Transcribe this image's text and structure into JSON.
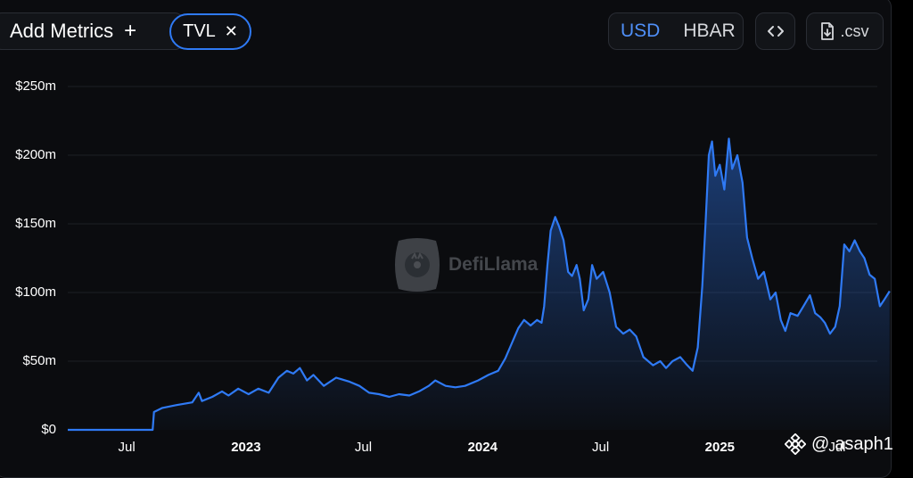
{
  "toolbar": {
    "add_metrics_label": "Add Metrics",
    "add_icon": "plus-icon",
    "metric_chip_label": "TVL",
    "chip_close_icon": "close-icon",
    "currency_options": [
      "USD",
      "HBAR"
    ],
    "currency_selected": "USD",
    "embed_icon": "code-icon",
    "csv_label": ".csv",
    "csv_icon": "file-download-icon"
  },
  "watermark": {
    "text": "DefiLlama",
    "icon": "llama-logo-icon"
  },
  "credit": {
    "at": "@",
    "handle": "asaph1",
    "icon": "binance-square-icon"
  },
  "colors": {
    "line": "#2f7af5",
    "accent": "#4f8ff7",
    "background": "#0b0c0f"
  },
  "chart_data": {
    "type": "area",
    "title": "",
    "xlabel": "",
    "ylabel": "",
    "ylim": [
      0,
      250
    ],
    "grid": true,
    "y_tick_labels": [
      "$0",
      "$50m",
      "$100m",
      "$150m",
      "$200m",
      "$250m"
    ],
    "y_tick_values": [
      0,
      50,
      100,
      150,
      200,
      250
    ],
    "x_tick_labels": [
      "Jul",
      "2023",
      "Jul",
      "2024",
      "Jul",
      "2025",
      "Jul"
    ],
    "x_tick_bold": [
      false,
      true,
      false,
      true,
      false,
      true,
      false
    ],
    "x_tick_dates": [
      "2022-07-01",
      "2023-01-01",
      "2023-07-01",
      "2024-01-01",
      "2024-07-01",
      "2025-01-01",
      "2025-07-01"
    ],
    "x_range": [
      "2022-04-01",
      "2025-09-01"
    ],
    "series": [
      {
        "name": "",
        "unit": "USD millions",
        "points": [
          [
            "2022-04-01",
            0
          ],
          [
            "2022-08-10",
            0
          ],
          [
            "2022-08-12",
            13
          ],
          [
            "2022-08-25",
            16
          ],
          [
            "2022-09-15",
            18
          ],
          [
            "2022-10-10",
            20
          ],
          [
            "2022-10-20",
            27
          ],
          [
            "2022-10-25",
            21
          ],
          [
            "2022-11-10",
            24
          ],
          [
            "2022-11-25",
            28
          ],
          [
            "2022-12-05",
            25
          ],
          [
            "2022-12-20",
            30
          ],
          [
            "2023-01-05",
            26
          ],
          [
            "2023-01-20",
            30
          ],
          [
            "2023-02-05",
            27
          ],
          [
            "2023-02-20",
            38
          ],
          [
            "2023-03-05",
            43
          ],
          [
            "2023-03-15",
            41
          ],
          [
            "2023-03-25",
            45
          ],
          [
            "2023-04-05",
            36
          ],
          [
            "2023-04-15",
            40
          ],
          [
            "2023-05-01",
            32
          ],
          [
            "2023-05-20",
            38
          ],
          [
            "2023-06-10",
            35
          ],
          [
            "2023-06-25",
            32
          ],
          [
            "2023-07-10",
            27
          ],
          [
            "2023-07-25",
            26
          ],
          [
            "2023-08-10",
            24
          ],
          [
            "2023-08-25",
            26
          ],
          [
            "2023-09-10",
            25
          ],
          [
            "2023-09-25",
            28
          ],
          [
            "2023-10-10",
            32
          ],
          [
            "2023-10-20",
            36
          ],
          [
            "2023-11-05",
            32
          ],
          [
            "2023-11-20",
            31
          ],
          [
            "2023-12-05",
            32
          ],
          [
            "2023-12-25",
            36
          ],
          [
            "2024-01-10",
            40
          ],
          [
            "2024-01-25",
            43
          ],
          [
            "2024-02-05",
            52
          ],
          [
            "2024-02-15",
            63
          ],
          [
            "2024-02-25",
            74
          ],
          [
            "2024-03-05",
            80
          ],
          [
            "2024-03-15",
            76
          ],
          [
            "2024-03-25",
            80
          ],
          [
            "2024-04-01",
            78
          ],
          [
            "2024-04-05",
            90
          ],
          [
            "2024-04-10",
            120
          ],
          [
            "2024-04-15",
            145
          ],
          [
            "2024-04-22",
            155
          ],
          [
            "2024-04-28",
            148
          ],
          [
            "2024-05-05",
            138
          ],
          [
            "2024-05-12",
            115
          ],
          [
            "2024-05-18",
            112
          ],
          [
            "2024-05-25",
            120
          ],
          [
            "2024-05-30",
            110
          ],
          [
            "2024-06-05",
            87
          ],
          [
            "2024-06-12",
            95
          ],
          [
            "2024-06-18",
            120
          ],
          [
            "2024-06-25",
            110
          ],
          [
            "2024-07-05",
            115
          ],
          [
            "2024-07-15",
            100
          ],
          [
            "2024-07-25",
            75
          ],
          [
            "2024-08-05",
            70
          ],
          [
            "2024-08-15",
            73
          ],
          [
            "2024-08-25",
            68
          ],
          [
            "2024-09-05",
            53
          ],
          [
            "2024-09-20",
            47
          ],
          [
            "2024-10-01",
            50
          ],
          [
            "2024-10-10",
            45
          ],
          [
            "2024-10-20",
            50
          ],
          [
            "2024-11-01",
            53
          ],
          [
            "2024-11-10",
            48
          ],
          [
            "2024-11-20",
            43
          ],
          [
            "2024-11-28",
            60
          ],
          [
            "2024-12-05",
            105
          ],
          [
            "2024-12-10",
            150
          ],
          [
            "2024-12-15",
            200
          ],
          [
            "2024-12-20",
            210
          ],
          [
            "2024-12-25",
            185
          ],
          [
            "2025-01-01",
            193
          ],
          [
            "2025-01-08",
            175
          ],
          [
            "2025-01-15",
            212
          ],
          [
            "2025-01-20",
            190
          ],
          [
            "2025-01-28",
            200
          ],
          [
            "2025-02-05",
            180
          ],
          [
            "2025-02-12",
            140
          ],
          [
            "2025-02-20",
            125
          ],
          [
            "2025-03-01",
            110
          ],
          [
            "2025-03-10",
            115
          ],
          [
            "2025-03-20",
            95
          ],
          [
            "2025-03-28",
            100
          ],
          [
            "2025-04-05",
            80
          ],
          [
            "2025-04-12",
            72
          ],
          [
            "2025-04-20",
            85
          ],
          [
            "2025-05-01",
            83
          ],
          [
            "2025-05-10",
            90
          ],
          [
            "2025-05-20",
            98
          ],
          [
            "2025-05-28",
            85
          ],
          [
            "2025-06-05",
            82
          ],
          [
            "2025-06-12",
            78
          ],
          [
            "2025-06-20",
            70
          ],
          [
            "2025-06-28",
            75
          ],
          [
            "2025-07-05",
            90
          ],
          [
            "2025-07-12",
            135
          ],
          [
            "2025-07-20",
            130
          ],
          [
            "2025-07-28",
            138
          ],
          [
            "2025-08-05",
            130
          ],
          [
            "2025-08-12",
            125
          ],
          [
            "2025-08-20",
            113
          ],
          [
            "2025-08-28",
            110
          ],
          [
            "2025-09-05",
            90
          ],
          [
            "2025-09-12",
            95
          ],
          [
            "2025-09-20",
            101
          ]
        ]
      }
    ]
  }
}
